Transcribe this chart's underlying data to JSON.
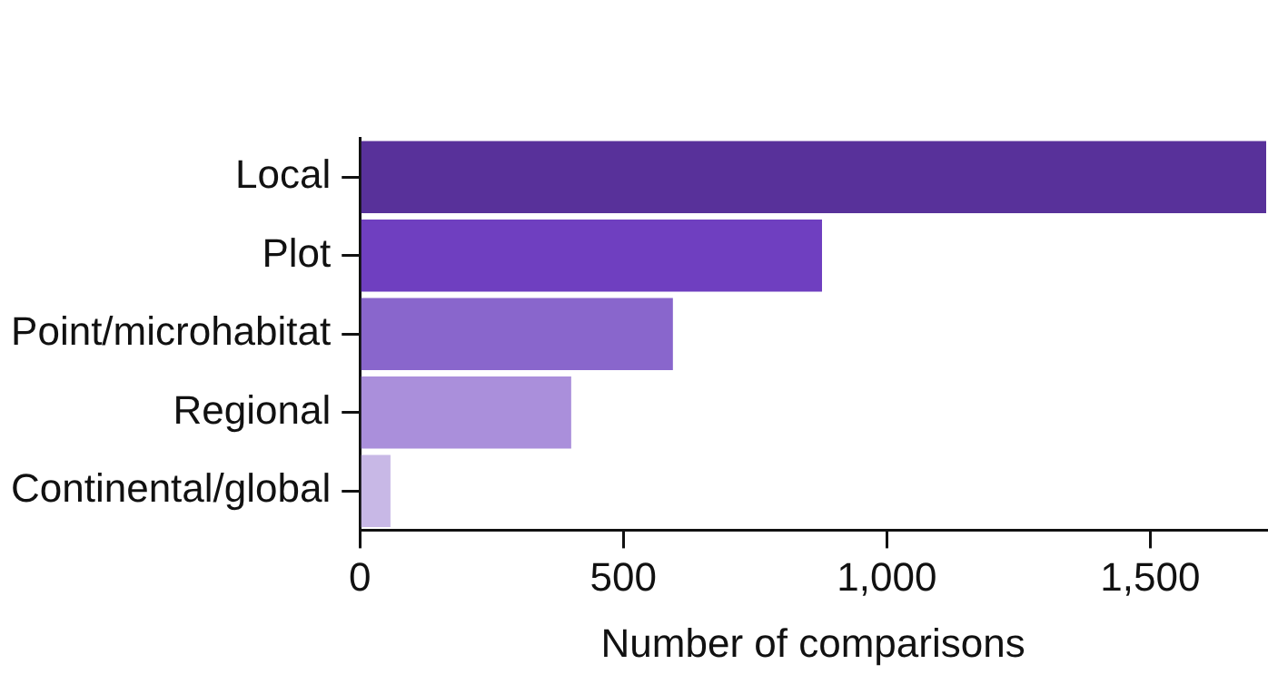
{
  "chart_data": {
    "type": "bar",
    "orientation": "horizontal",
    "xlabel": "Number of comparisons",
    "categories": [
      "Local",
      "Plot",
      "Point/microhabitat",
      "Regional",
      "Continental/global"
    ],
    "values": [
      1720,
      877,
      594,
      401,
      58
    ],
    "colors": [
      "#58319a",
      "#6f3fc0",
      "#8966cc",
      "#aa8fdb",
      "#c8b8e6"
    ],
    "xlim": [
      0,
      1720
    ],
    "xticks": [
      0,
      {
        "value": 500,
        "label": "500"
      },
      {
        "value": 1000,
        "label": "1,000"
      },
      {
        "value": 1500,
        "label": "1,500"
      }
    ],
    "grid": false,
    "legend": false
  }
}
